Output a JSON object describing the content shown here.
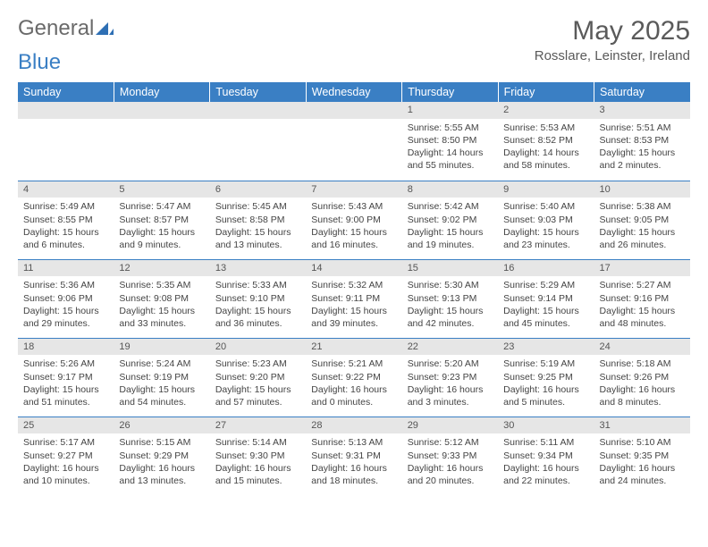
{
  "brand": {
    "part1": "General",
    "part2": "Blue"
  },
  "title": "May 2025",
  "location": "Rosslare, Leinster, Ireland",
  "colors": {
    "header_bg": "#3a7fc4",
    "header_fg": "#ffffff",
    "daynum_bg": "#e6e6e6",
    "border": "#3a7fc4",
    "text": "#444444"
  },
  "typography": {
    "title_fontsize": 30,
    "location_fontsize": 15,
    "dayheader_fontsize": 12.5,
    "cell_fontsize": 10.5
  },
  "day_headers": [
    "Sunday",
    "Monday",
    "Tuesday",
    "Wednesday",
    "Thursday",
    "Friday",
    "Saturday"
  ],
  "weeks": [
    [
      null,
      null,
      null,
      null,
      {
        "n": "1",
        "sr": "Sunrise: 5:55 AM",
        "ss": "Sunset: 8:50 PM",
        "dl": "Daylight: 14 hours and 55 minutes."
      },
      {
        "n": "2",
        "sr": "Sunrise: 5:53 AM",
        "ss": "Sunset: 8:52 PM",
        "dl": "Daylight: 14 hours and 58 minutes."
      },
      {
        "n": "3",
        "sr": "Sunrise: 5:51 AM",
        "ss": "Sunset: 8:53 PM",
        "dl": "Daylight: 15 hours and 2 minutes."
      }
    ],
    [
      {
        "n": "4",
        "sr": "Sunrise: 5:49 AM",
        "ss": "Sunset: 8:55 PM",
        "dl": "Daylight: 15 hours and 6 minutes."
      },
      {
        "n": "5",
        "sr": "Sunrise: 5:47 AM",
        "ss": "Sunset: 8:57 PM",
        "dl": "Daylight: 15 hours and 9 minutes."
      },
      {
        "n": "6",
        "sr": "Sunrise: 5:45 AM",
        "ss": "Sunset: 8:58 PM",
        "dl": "Daylight: 15 hours and 13 minutes."
      },
      {
        "n": "7",
        "sr": "Sunrise: 5:43 AM",
        "ss": "Sunset: 9:00 PM",
        "dl": "Daylight: 15 hours and 16 minutes."
      },
      {
        "n": "8",
        "sr": "Sunrise: 5:42 AM",
        "ss": "Sunset: 9:02 PM",
        "dl": "Daylight: 15 hours and 19 minutes."
      },
      {
        "n": "9",
        "sr": "Sunrise: 5:40 AM",
        "ss": "Sunset: 9:03 PM",
        "dl": "Daylight: 15 hours and 23 minutes."
      },
      {
        "n": "10",
        "sr": "Sunrise: 5:38 AM",
        "ss": "Sunset: 9:05 PM",
        "dl": "Daylight: 15 hours and 26 minutes."
      }
    ],
    [
      {
        "n": "11",
        "sr": "Sunrise: 5:36 AM",
        "ss": "Sunset: 9:06 PM",
        "dl": "Daylight: 15 hours and 29 minutes."
      },
      {
        "n": "12",
        "sr": "Sunrise: 5:35 AM",
        "ss": "Sunset: 9:08 PM",
        "dl": "Daylight: 15 hours and 33 minutes."
      },
      {
        "n": "13",
        "sr": "Sunrise: 5:33 AM",
        "ss": "Sunset: 9:10 PM",
        "dl": "Daylight: 15 hours and 36 minutes."
      },
      {
        "n": "14",
        "sr": "Sunrise: 5:32 AM",
        "ss": "Sunset: 9:11 PM",
        "dl": "Daylight: 15 hours and 39 minutes."
      },
      {
        "n": "15",
        "sr": "Sunrise: 5:30 AM",
        "ss": "Sunset: 9:13 PM",
        "dl": "Daylight: 15 hours and 42 minutes."
      },
      {
        "n": "16",
        "sr": "Sunrise: 5:29 AM",
        "ss": "Sunset: 9:14 PM",
        "dl": "Daylight: 15 hours and 45 minutes."
      },
      {
        "n": "17",
        "sr": "Sunrise: 5:27 AM",
        "ss": "Sunset: 9:16 PM",
        "dl": "Daylight: 15 hours and 48 minutes."
      }
    ],
    [
      {
        "n": "18",
        "sr": "Sunrise: 5:26 AM",
        "ss": "Sunset: 9:17 PM",
        "dl": "Daylight: 15 hours and 51 minutes."
      },
      {
        "n": "19",
        "sr": "Sunrise: 5:24 AM",
        "ss": "Sunset: 9:19 PM",
        "dl": "Daylight: 15 hours and 54 minutes."
      },
      {
        "n": "20",
        "sr": "Sunrise: 5:23 AM",
        "ss": "Sunset: 9:20 PM",
        "dl": "Daylight: 15 hours and 57 minutes."
      },
      {
        "n": "21",
        "sr": "Sunrise: 5:21 AM",
        "ss": "Sunset: 9:22 PM",
        "dl": "Daylight: 16 hours and 0 minutes."
      },
      {
        "n": "22",
        "sr": "Sunrise: 5:20 AM",
        "ss": "Sunset: 9:23 PM",
        "dl": "Daylight: 16 hours and 3 minutes."
      },
      {
        "n": "23",
        "sr": "Sunrise: 5:19 AM",
        "ss": "Sunset: 9:25 PM",
        "dl": "Daylight: 16 hours and 5 minutes."
      },
      {
        "n": "24",
        "sr": "Sunrise: 5:18 AM",
        "ss": "Sunset: 9:26 PM",
        "dl": "Daylight: 16 hours and 8 minutes."
      }
    ],
    [
      {
        "n": "25",
        "sr": "Sunrise: 5:17 AM",
        "ss": "Sunset: 9:27 PM",
        "dl": "Daylight: 16 hours and 10 minutes."
      },
      {
        "n": "26",
        "sr": "Sunrise: 5:15 AM",
        "ss": "Sunset: 9:29 PM",
        "dl": "Daylight: 16 hours and 13 minutes."
      },
      {
        "n": "27",
        "sr": "Sunrise: 5:14 AM",
        "ss": "Sunset: 9:30 PM",
        "dl": "Daylight: 16 hours and 15 minutes."
      },
      {
        "n": "28",
        "sr": "Sunrise: 5:13 AM",
        "ss": "Sunset: 9:31 PM",
        "dl": "Daylight: 16 hours and 18 minutes."
      },
      {
        "n": "29",
        "sr": "Sunrise: 5:12 AM",
        "ss": "Sunset: 9:33 PM",
        "dl": "Daylight: 16 hours and 20 minutes."
      },
      {
        "n": "30",
        "sr": "Sunrise: 5:11 AM",
        "ss": "Sunset: 9:34 PM",
        "dl": "Daylight: 16 hours and 22 minutes."
      },
      {
        "n": "31",
        "sr": "Sunrise: 5:10 AM",
        "ss": "Sunset: 9:35 PM",
        "dl": "Daylight: 16 hours and 24 minutes."
      }
    ]
  ]
}
